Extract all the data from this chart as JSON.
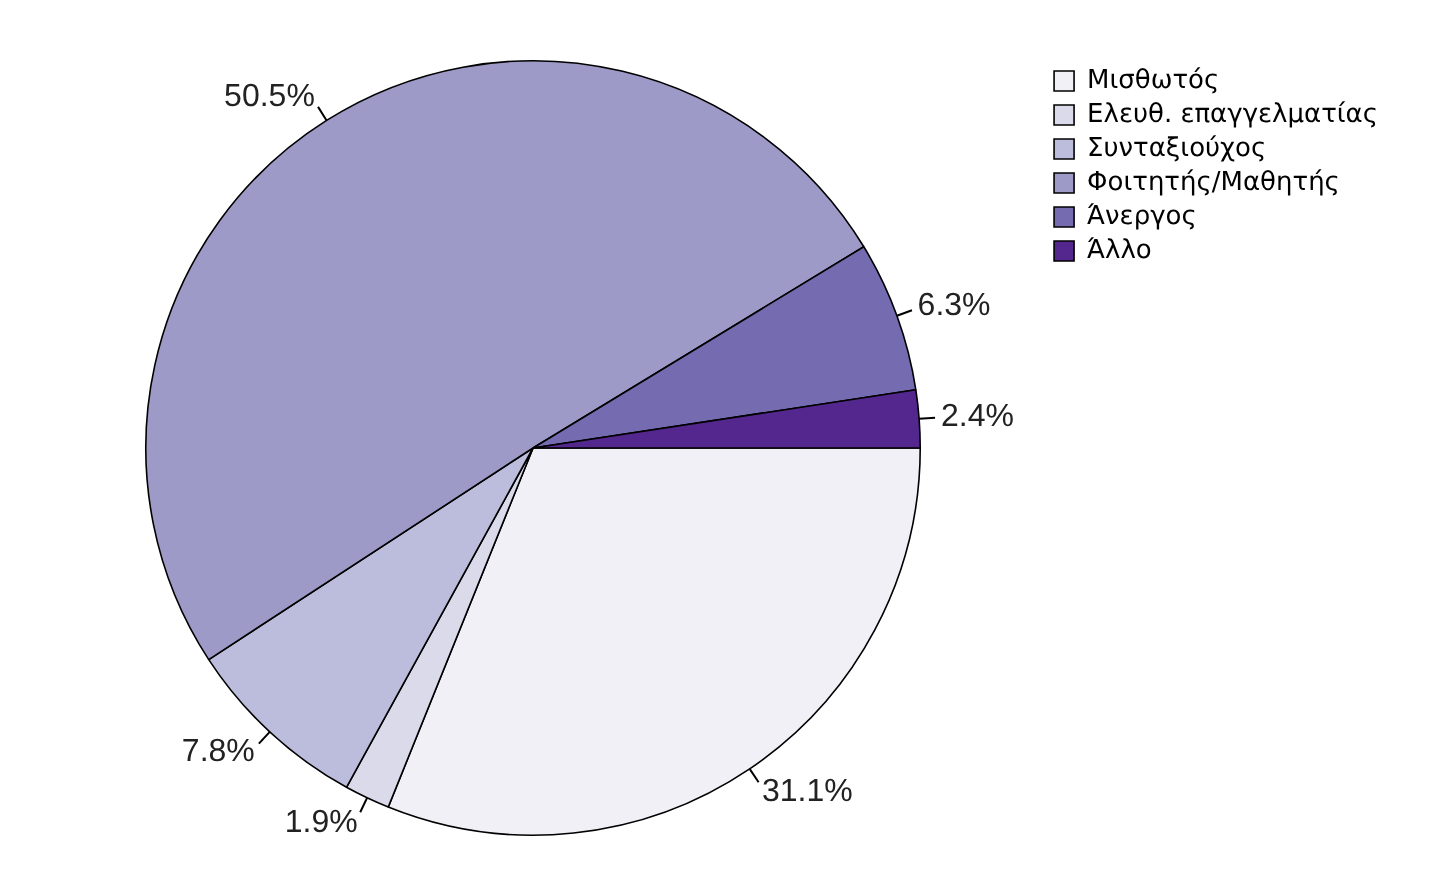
{
  "chart_data": {
    "type": "pie",
    "categories": [
      "Μισθωτός",
      "Ελευθ. επαγγελματίας",
      "Συνταξιούχος",
      "Φοιτητής/Μαθητής",
      "Άνεργος",
      "Άλλο"
    ],
    "values": [
      31.1,
      1.9,
      7.8,
      50.5,
      6.3,
      2.4
    ],
    "colors": [
      "#f2f0f7",
      "#dadaeb",
      "#bcbddc",
      "#9e9ac8",
      "#756bb1",
      "#54278f"
    ],
    "value_labels": [
      "31.1%",
      "1.9%",
      "7.8%",
      "50.5%",
      "6.3%",
      "2.4%"
    ],
    "legend": "top right"
  }
}
